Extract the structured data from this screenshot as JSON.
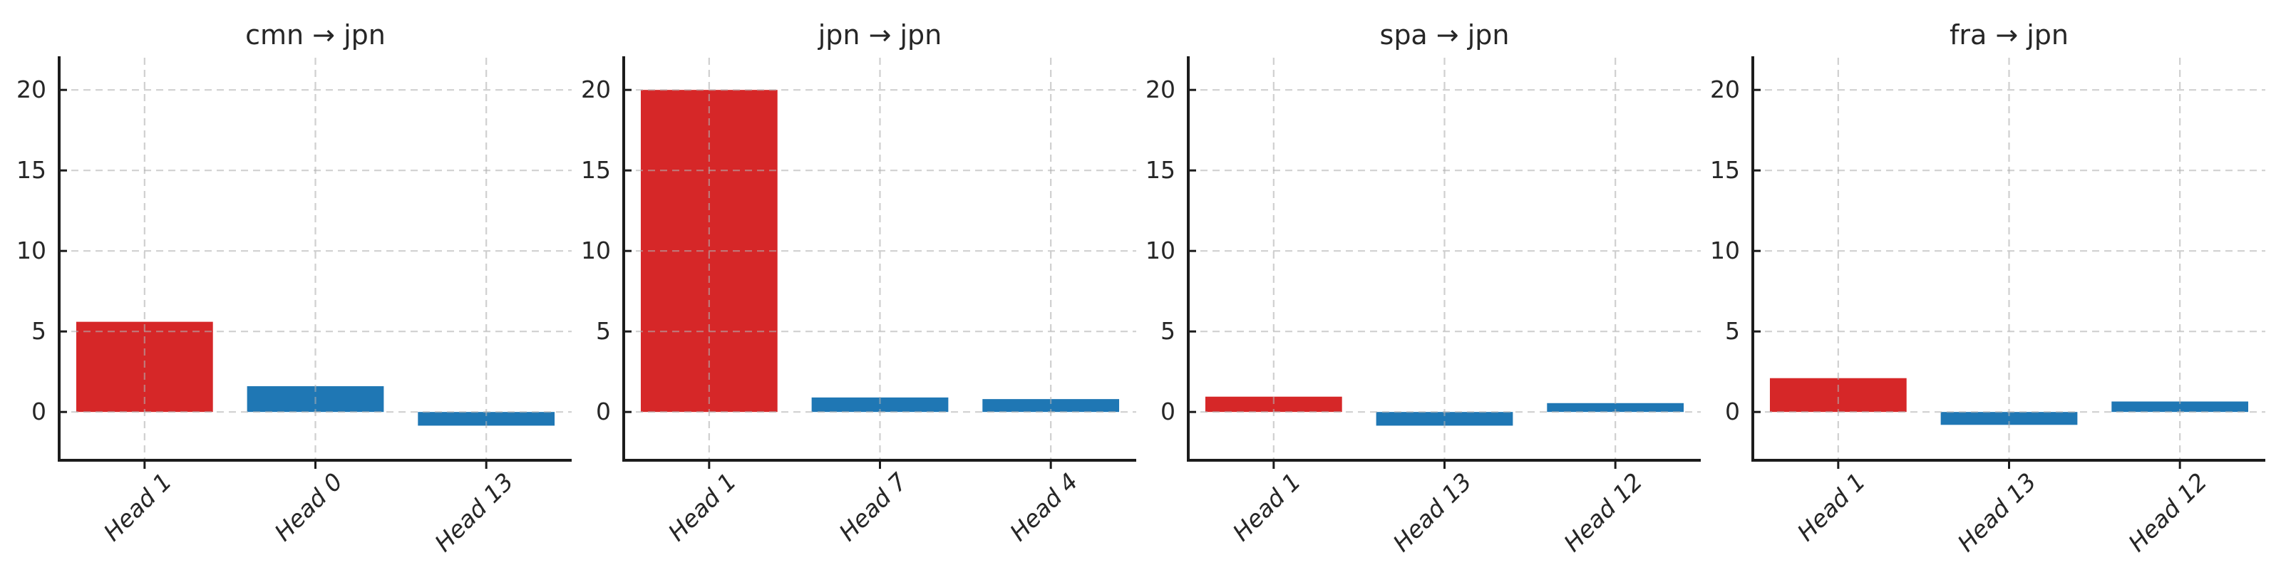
{
  "style": {
    "highlight_bar_color": "#d62728",
    "default_bar_color": "#1f77b4",
    "grid_color": "#b0b0b0",
    "spine_color": "#1c1c1c",
    "text_color": "#262626",
    "background": "#ffffff"
  },
  "chart_data": [
    {
      "type": "bar",
      "title": "cmn → jpn",
      "categories": [
        "Head 1",
        "Head 0",
        "Head 13"
      ],
      "values": [
        5.6,
        1.6,
        -0.85
      ],
      "bar_colors": [
        "#d62728",
        "#1f77b4",
        "#1f77b4"
      ],
      "xlabel": "",
      "ylabel": "",
      "ylim": [
        -3,
        22
      ],
      "yticks": [
        0,
        5,
        10,
        15,
        20
      ],
      "grid": true,
      "legend": false
    },
    {
      "type": "bar",
      "title": "jpn → jpn",
      "categories": [
        "Head 1",
        "Head 7",
        "Head 4"
      ],
      "values": [
        20.0,
        0.9,
        0.8
      ],
      "bar_colors": [
        "#d62728",
        "#1f77b4",
        "#1f77b4"
      ],
      "xlabel": "",
      "ylabel": "",
      "ylim": [
        -3,
        22
      ],
      "yticks": [
        0,
        5,
        10,
        15,
        20
      ],
      "grid": true,
      "legend": false
    },
    {
      "type": "bar",
      "title": "spa → jpn",
      "categories": [
        "Head 1",
        "Head 13",
        "Head 12"
      ],
      "values": [
        0.95,
        -0.85,
        0.55
      ],
      "bar_colors": [
        "#d62728",
        "#1f77b4",
        "#1f77b4"
      ],
      "xlabel": "",
      "ylabel": "",
      "ylim": [
        -3,
        22
      ],
      "yticks": [
        0,
        5,
        10,
        15,
        20
      ],
      "grid": true,
      "legend": false
    },
    {
      "type": "bar",
      "title": "fra → jpn",
      "categories": [
        "Head 1",
        "Head 13",
        "Head 12"
      ],
      "values": [
        2.1,
        -0.8,
        0.65
      ],
      "bar_colors": [
        "#d62728",
        "#1f77b4",
        "#1f77b4"
      ],
      "xlabel": "",
      "ylabel": "",
      "ylim": [
        -3,
        22
      ],
      "yticks": [
        0,
        5,
        10,
        15,
        20
      ],
      "grid": true,
      "legend": false
    }
  ]
}
